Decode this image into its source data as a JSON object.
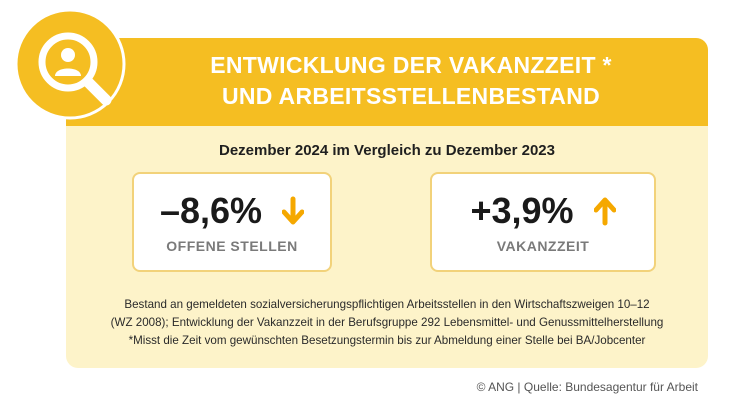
{
  "colors": {
    "accent": "#f5be22",
    "card_bg": "#fdf3c9",
    "arrow": "#f5a800"
  },
  "header": {
    "title_line1": "ENTWICKLUNG DER VAKANZZEIT *",
    "title_line2": "UND ARBEITSSTELLENBESTAND",
    "icon": "magnifier-person-icon"
  },
  "subtitle": "Dezember 2024 im Vergleich zu Dezember 2023",
  "stats": [
    {
      "value": "–8,6%",
      "label": "OFFENE STELLEN",
      "arrow_icon": "arrow-down-icon"
    },
    {
      "value": "+3,9%",
      "label": "VAKANZZEIT",
      "arrow_icon": "arrow-up-icon"
    }
  ],
  "notes": {
    "line1": "Bestand an gemeldeten sozialversicherungspflichtigen Arbeitsstellen in den Wirtschaftszweigen 10–12",
    "line2": "(WZ 2008); Entwicklung der Vakanzzeit in der Berufsgruppe 292 Lebensmittel- und Genussmittelherstellung",
    "line3": "*Misst die Zeit vom gewünschten Besetzungstermin bis zur Abmeldung einer Stelle bei BA/Jobcenter"
  },
  "source": "© ANG | Quelle: Bundesagentur für Arbeit"
}
